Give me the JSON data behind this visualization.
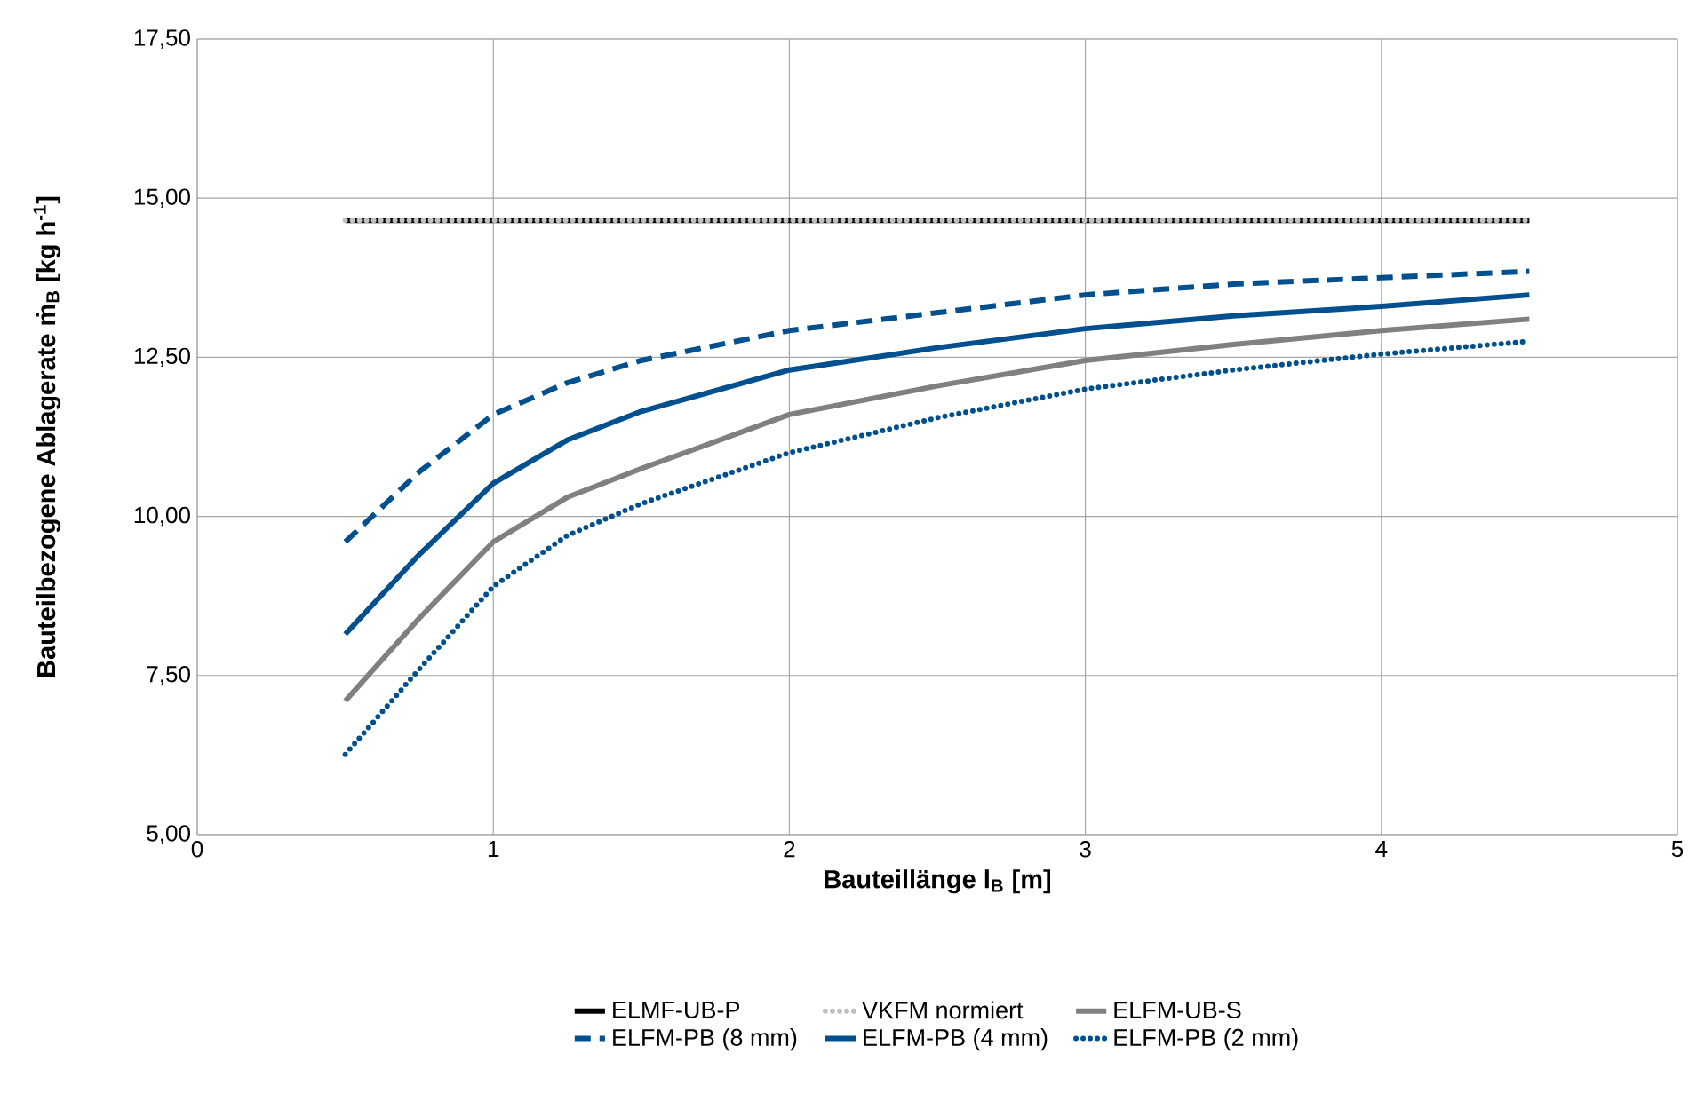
{
  "chart_data": {
    "type": "line",
    "xlabel": "Bauteillänge l$_{B}$ [m]",
    "ylabel": "Bauteilbezogene Ablagerate ṁ$_{B}$ [kg h$^{-1}$]",
    "x": [
      0.5,
      0.75,
      1,
      1.25,
      1.5,
      2,
      2.5,
      3,
      3.5,
      4,
      4.5
    ],
    "series": [
      {
        "name": "ELMF-UB-P",
        "color": "#000000",
        "line_style": "solid",
        "values": [
          14.65,
          14.65,
          14.65,
          14.65,
          14.65,
          14.65,
          14.65,
          14.65,
          14.65,
          14.65,
          14.65
        ]
      },
      {
        "name": "VKFM normiert",
        "color": "#c0c0c0",
        "line_style": "dotted",
        "values": [
          14.65,
          14.65,
          14.65,
          14.65,
          14.65,
          14.65,
          14.65,
          14.65,
          14.65,
          14.65,
          14.65
        ]
      },
      {
        "name": "ELFM-UB-S",
        "color": "#808080",
        "line_style": "solid",
        "values": [
          7.1,
          8.4,
          9.6,
          10.3,
          10.75,
          11.6,
          12.05,
          12.45,
          12.7,
          12.92,
          13.1
        ]
      },
      {
        "name": "ELFM-PB (8 mm)",
        "color": "#00508f",
        "line_style": "dashed",
        "values": [
          9.6,
          10.7,
          11.6,
          12.1,
          12.45,
          12.92,
          13.2,
          13.48,
          13.65,
          13.75,
          13.85
        ]
      },
      {
        "name": "ELFM-PB (4 mm)",
        "color": "#00508f",
        "line_style": "solid",
        "values": [
          8.15,
          9.4,
          10.52,
          11.2,
          11.65,
          12.3,
          12.65,
          12.95,
          13.15,
          13.3,
          13.48
        ]
      },
      {
        "name": "ELFM-PB (2 mm)",
        "color": "#00508f",
        "line_style": "dotted",
        "values": [
          6.26,
          7.6,
          8.9,
          9.7,
          10.2,
          11.0,
          11.55,
          12.0,
          12.3,
          12.55,
          12.75
        ]
      }
    ],
    "xlim": [
      0,
      5
    ],
    "xticks": [
      0,
      1,
      2,
      3,
      4,
      5
    ],
    "ylim": [
      5,
      17.5
    ],
    "yticks": [
      {
        "value": 5,
        "label": "5,00"
      },
      {
        "value": 7.5,
        "label": "7,50"
      },
      {
        "value": 10,
        "label": "10,00"
      },
      {
        "value": 12.5,
        "label": "12,50"
      },
      {
        "value": 15,
        "label": "15,00"
      },
      {
        "value": 17.5,
        "label": "17,50"
      }
    ],
    "grid": true,
    "legend": "bottom",
    "marker": "none"
  }
}
